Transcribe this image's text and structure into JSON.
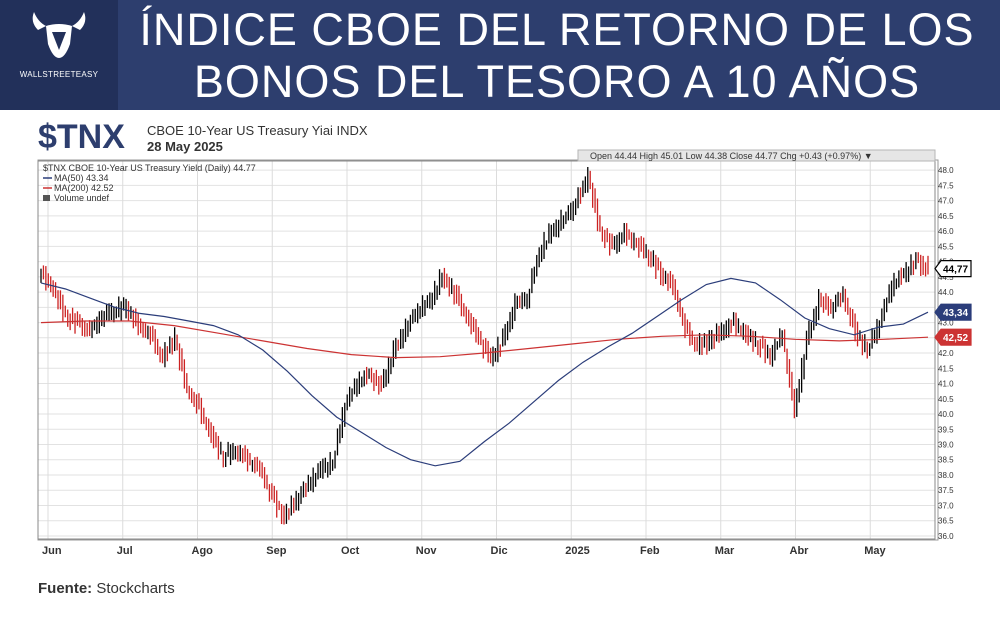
{
  "header": {
    "title_line1": "ÍNDICE CBOE DEL RETORNO DE LOS",
    "title_line2": "BONOS DEL TESORO A 10 AÑOS",
    "logo_text": "WALLSTREETEASY",
    "logo_icon": "bull-head-icon"
  },
  "chart_header": {
    "ticker": "$TNX",
    "name": "CBOE 10-Year US Treasury Yiai INDX",
    "date": "28 May 2025"
  },
  "ohlc_bar": {
    "text": "Open 44.44  High 45.01  Low 44.38  Close 44.77  Chg +0.43 (+0.97%) ▼"
  },
  "legend": {
    "line1": "$TNX CBOE 10-Year US Treasury Yield (Daily) 44.77",
    "line2": "MA(50) 43.34",
    "line3": "MA(200) 42.52",
    "line4": "Volume undef"
  },
  "source": {
    "label": "Fuente:",
    "value": "Stockcharts"
  },
  "colors": {
    "header_bg": "#2d3e6e",
    "up_bar": "#000000",
    "down_bar": "#cc2222",
    "ma50": "#2b3d7a",
    "ma200": "#cc3333"
  },
  "chart_data": {
    "type": "ohlc",
    "title": "$TNX CBOE 10-Year US Treasury Yield (Daily)",
    "xlabel": "",
    "ylabel": "",
    "x_tick_labels": [
      "Jun",
      "Jul",
      "Ago",
      "Sep",
      "Oct",
      "Nov",
      "Dic",
      "2025",
      "Feb",
      "Mar",
      "Abr",
      "May"
    ],
    "y_tick_labels": [
      "36.0",
      "36.5",
      "37.0",
      "37.5",
      "38.0",
      "38.5",
      "39.0",
      "39.5",
      "40.0",
      "40.5",
      "41.0",
      "41.5",
      "42.0",
      "42.5",
      "43.0",
      "43.5",
      "44.0",
      "44.5",
      "45.0",
      "45.5",
      "46.0",
      "46.5",
      "47.0",
      "47.5",
      "48.0"
    ],
    "ylim": [
      35.9,
      48.3
    ],
    "axis_position": "right",
    "grid": true,
    "weekly_closes": [
      44.6,
      44.1,
      43.2,
      43.0,
      42.7,
      43.2,
      43.4,
      43.5,
      42.9,
      42.6,
      41.8,
      42.5,
      40.8,
      40.2,
      39.3,
      38.6,
      38.8,
      38.5,
      38.2,
      37.3,
      36.6,
      37.2,
      37.7,
      38.2,
      38.4,
      40.3,
      41.0,
      41.3,
      40.9,
      42.0,
      42.8,
      43.4,
      43.7,
      44.5,
      44.0,
      43.2,
      42.5,
      41.8,
      42.4,
      43.6,
      43.8,
      45.3,
      46.0,
      46.4,
      46.9,
      47.8,
      46.0,
      45.5,
      45.9,
      45.6,
      45.2,
      44.6,
      44.2,
      42.8,
      42.2,
      42.4,
      42.7,
      43.0,
      42.6,
      42.3,
      41.9,
      42.6,
      40.1,
      42.4,
      43.7,
      43.5,
      43.9,
      42.7,
      42.1,
      43.0,
      44.2,
      44.6,
      45.0,
      44.77
    ],
    "series": [
      {
        "name": "$TNX",
        "type": "ohlc"
      },
      {
        "name": "MA(50)",
        "type": "line",
        "last": 43.34,
        "values": [
          44.3,
          44.1,
          43.8,
          43.5,
          43.3,
          43.2,
          43.05,
          42.9,
          42.6,
          42.1,
          41.4,
          40.6,
          39.9,
          39.4,
          38.9,
          38.5,
          38.3,
          38.45,
          39.1,
          39.7,
          40.4,
          41.1,
          41.7,
          42.2,
          42.65,
          43.2,
          43.75,
          44.25,
          44.45,
          44.3,
          43.75,
          43.15,
          42.8,
          42.6,
          42.85,
          42.95,
          43.34
        ]
      },
      {
        "name": "MA(200)",
        "type": "line",
        "last": 42.52,
        "values": [
          43.0,
          43.05,
          43.05,
          42.9,
          42.65,
          42.4,
          42.15,
          41.95,
          41.85,
          41.88,
          42.0,
          42.15,
          42.3,
          42.45,
          42.55,
          42.6,
          42.55,
          42.45,
          42.4,
          42.45,
          42.52
        ]
      }
    ],
    "price_labels": [
      {
        "label": "44,77",
        "value": 44.77,
        "series": "$TNX"
      },
      {
        "label": "43,34",
        "value": 43.34,
        "series": "MA(50)"
      },
      {
        "label": "42,52",
        "value": 42.52,
        "series": "MA(200)"
      }
    ]
  }
}
